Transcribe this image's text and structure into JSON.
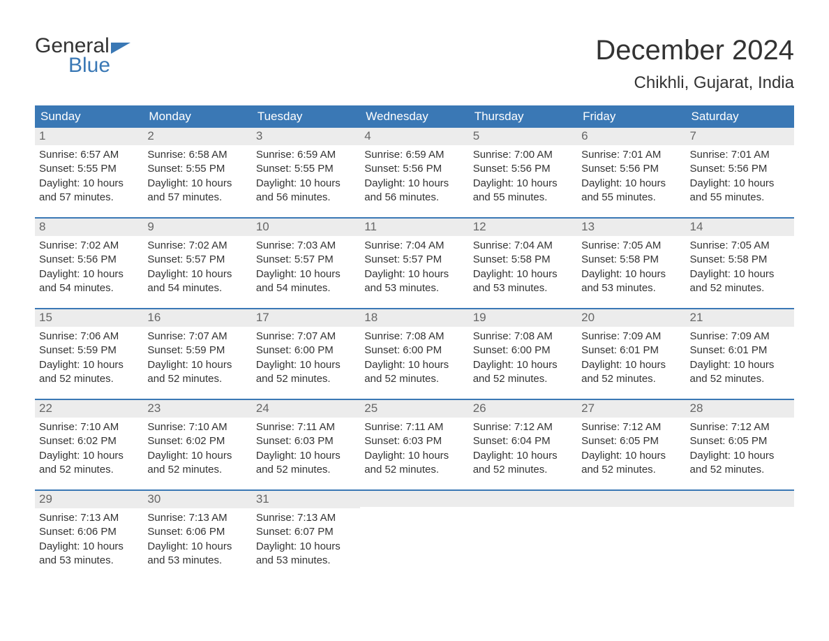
{
  "logo": {
    "word1": "General",
    "word2": "Blue"
  },
  "title": {
    "month": "December 2024",
    "location": "Chikhli, Gujarat, India"
  },
  "colors": {
    "header_bg": "#3a78b5",
    "header_text": "#ffffff",
    "daynum_bg": "#ececec",
    "daynum_text": "#666666",
    "body_text": "#333333",
    "week_border": "#3a78b5",
    "logo_accent": "#3a78b5",
    "background": "#ffffff"
  },
  "typography": {
    "title_fontsize": 40,
    "location_fontsize": 24,
    "dayheader_fontsize": 17,
    "daynum_fontsize": 17,
    "body_fontsize": 15,
    "font_family": "Arial"
  },
  "layout": {
    "columns": 7,
    "rows": 5,
    "cell_min_height": 128
  },
  "dayheaders": [
    "Sunday",
    "Monday",
    "Tuesday",
    "Wednesday",
    "Thursday",
    "Friday",
    "Saturday"
  ],
  "weeks": [
    [
      {
        "num": "1",
        "sunrise": "Sunrise: 6:57 AM",
        "sunset": "Sunset: 5:55 PM",
        "daylight1": "Daylight: 10 hours",
        "daylight2": "and 57 minutes."
      },
      {
        "num": "2",
        "sunrise": "Sunrise: 6:58 AM",
        "sunset": "Sunset: 5:55 PM",
        "daylight1": "Daylight: 10 hours",
        "daylight2": "and 57 minutes."
      },
      {
        "num": "3",
        "sunrise": "Sunrise: 6:59 AM",
        "sunset": "Sunset: 5:55 PM",
        "daylight1": "Daylight: 10 hours",
        "daylight2": "and 56 minutes."
      },
      {
        "num": "4",
        "sunrise": "Sunrise: 6:59 AM",
        "sunset": "Sunset: 5:56 PM",
        "daylight1": "Daylight: 10 hours",
        "daylight2": "and 56 minutes."
      },
      {
        "num": "5",
        "sunrise": "Sunrise: 7:00 AM",
        "sunset": "Sunset: 5:56 PM",
        "daylight1": "Daylight: 10 hours",
        "daylight2": "and 55 minutes."
      },
      {
        "num": "6",
        "sunrise": "Sunrise: 7:01 AM",
        "sunset": "Sunset: 5:56 PM",
        "daylight1": "Daylight: 10 hours",
        "daylight2": "and 55 minutes."
      },
      {
        "num": "7",
        "sunrise": "Sunrise: 7:01 AM",
        "sunset": "Sunset: 5:56 PM",
        "daylight1": "Daylight: 10 hours",
        "daylight2": "and 55 minutes."
      }
    ],
    [
      {
        "num": "8",
        "sunrise": "Sunrise: 7:02 AM",
        "sunset": "Sunset: 5:56 PM",
        "daylight1": "Daylight: 10 hours",
        "daylight2": "and 54 minutes."
      },
      {
        "num": "9",
        "sunrise": "Sunrise: 7:02 AM",
        "sunset": "Sunset: 5:57 PM",
        "daylight1": "Daylight: 10 hours",
        "daylight2": "and 54 minutes."
      },
      {
        "num": "10",
        "sunrise": "Sunrise: 7:03 AM",
        "sunset": "Sunset: 5:57 PM",
        "daylight1": "Daylight: 10 hours",
        "daylight2": "and 54 minutes."
      },
      {
        "num": "11",
        "sunrise": "Sunrise: 7:04 AM",
        "sunset": "Sunset: 5:57 PM",
        "daylight1": "Daylight: 10 hours",
        "daylight2": "and 53 minutes."
      },
      {
        "num": "12",
        "sunrise": "Sunrise: 7:04 AM",
        "sunset": "Sunset: 5:58 PM",
        "daylight1": "Daylight: 10 hours",
        "daylight2": "and 53 minutes."
      },
      {
        "num": "13",
        "sunrise": "Sunrise: 7:05 AM",
        "sunset": "Sunset: 5:58 PM",
        "daylight1": "Daylight: 10 hours",
        "daylight2": "and 53 minutes."
      },
      {
        "num": "14",
        "sunrise": "Sunrise: 7:05 AM",
        "sunset": "Sunset: 5:58 PM",
        "daylight1": "Daylight: 10 hours",
        "daylight2": "and 52 minutes."
      }
    ],
    [
      {
        "num": "15",
        "sunrise": "Sunrise: 7:06 AM",
        "sunset": "Sunset: 5:59 PM",
        "daylight1": "Daylight: 10 hours",
        "daylight2": "and 52 minutes."
      },
      {
        "num": "16",
        "sunrise": "Sunrise: 7:07 AM",
        "sunset": "Sunset: 5:59 PM",
        "daylight1": "Daylight: 10 hours",
        "daylight2": "and 52 minutes."
      },
      {
        "num": "17",
        "sunrise": "Sunrise: 7:07 AM",
        "sunset": "Sunset: 6:00 PM",
        "daylight1": "Daylight: 10 hours",
        "daylight2": "and 52 minutes."
      },
      {
        "num": "18",
        "sunrise": "Sunrise: 7:08 AM",
        "sunset": "Sunset: 6:00 PM",
        "daylight1": "Daylight: 10 hours",
        "daylight2": "and 52 minutes."
      },
      {
        "num": "19",
        "sunrise": "Sunrise: 7:08 AM",
        "sunset": "Sunset: 6:00 PM",
        "daylight1": "Daylight: 10 hours",
        "daylight2": "and 52 minutes."
      },
      {
        "num": "20",
        "sunrise": "Sunrise: 7:09 AM",
        "sunset": "Sunset: 6:01 PM",
        "daylight1": "Daylight: 10 hours",
        "daylight2": "and 52 minutes."
      },
      {
        "num": "21",
        "sunrise": "Sunrise: 7:09 AM",
        "sunset": "Sunset: 6:01 PM",
        "daylight1": "Daylight: 10 hours",
        "daylight2": "and 52 minutes."
      }
    ],
    [
      {
        "num": "22",
        "sunrise": "Sunrise: 7:10 AM",
        "sunset": "Sunset: 6:02 PM",
        "daylight1": "Daylight: 10 hours",
        "daylight2": "and 52 minutes."
      },
      {
        "num": "23",
        "sunrise": "Sunrise: 7:10 AM",
        "sunset": "Sunset: 6:02 PM",
        "daylight1": "Daylight: 10 hours",
        "daylight2": "and 52 minutes."
      },
      {
        "num": "24",
        "sunrise": "Sunrise: 7:11 AM",
        "sunset": "Sunset: 6:03 PM",
        "daylight1": "Daylight: 10 hours",
        "daylight2": "and 52 minutes."
      },
      {
        "num": "25",
        "sunrise": "Sunrise: 7:11 AM",
        "sunset": "Sunset: 6:03 PM",
        "daylight1": "Daylight: 10 hours",
        "daylight2": "and 52 minutes."
      },
      {
        "num": "26",
        "sunrise": "Sunrise: 7:12 AM",
        "sunset": "Sunset: 6:04 PM",
        "daylight1": "Daylight: 10 hours",
        "daylight2": "and 52 minutes."
      },
      {
        "num": "27",
        "sunrise": "Sunrise: 7:12 AM",
        "sunset": "Sunset: 6:05 PM",
        "daylight1": "Daylight: 10 hours",
        "daylight2": "and 52 minutes."
      },
      {
        "num": "28",
        "sunrise": "Sunrise: 7:12 AM",
        "sunset": "Sunset: 6:05 PM",
        "daylight1": "Daylight: 10 hours",
        "daylight2": "and 52 minutes."
      }
    ],
    [
      {
        "num": "29",
        "sunrise": "Sunrise: 7:13 AM",
        "sunset": "Sunset: 6:06 PM",
        "daylight1": "Daylight: 10 hours",
        "daylight2": "and 53 minutes."
      },
      {
        "num": "30",
        "sunrise": "Sunrise: 7:13 AM",
        "sunset": "Sunset: 6:06 PM",
        "daylight1": "Daylight: 10 hours",
        "daylight2": "and 53 minutes."
      },
      {
        "num": "31",
        "sunrise": "Sunrise: 7:13 AM",
        "sunset": "Sunset: 6:07 PM",
        "daylight1": "Daylight: 10 hours",
        "daylight2": "and 53 minutes."
      },
      null,
      null,
      null,
      null
    ]
  ]
}
